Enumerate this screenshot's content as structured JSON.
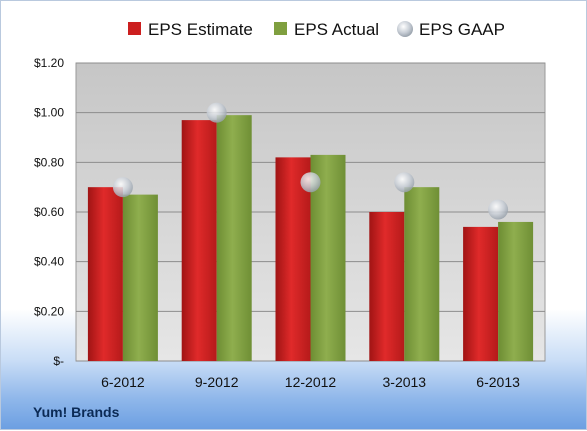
{
  "chart_data": {
    "type": "bar",
    "categories": [
      "6-2012",
      "9-2012",
      "12-2012",
      "3-2013",
      "6-2013"
    ],
    "series": [
      {
        "name": "EPS Estimate",
        "values": [
          0.7,
          0.97,
          0.82,
          0.6,
          0.54
        ],
        "color": "#cc1f1f"
      },
      {
        "name": "EPS Actual",
        "values": [
          0.67,
          0.99,
          0.83,
          0.7,
          0.56
        ],
        "color": "#7f9f3f"
      }
    ],
    "markers": {
      "name": "EPS GAAP",
      "values": [
        0.7,
        1.0,
        0.72,
        0.72,
        0.61
      ],
      "color": "#c8ced6"
    },
    "y_ticks": [
      "$-",
      "$0.20",
      "$0.40",
      "$0.60",
      "$0.80",
      "$1.00",
      "$1.20"
    ],
    "ylim": [
      0,
      1.2
    ],
    "grid": true,
    "legend_position": "top"
  },
  "footer": {
    "company": "Yum! Brands"
  }
}
